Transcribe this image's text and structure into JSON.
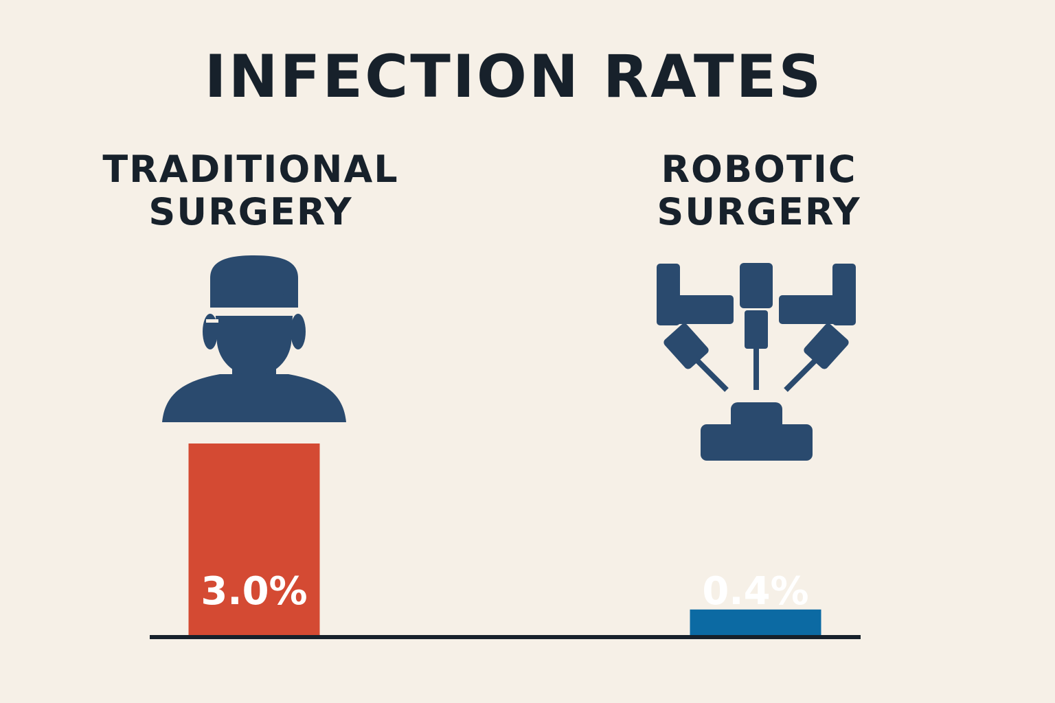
{
  "chart_data": {
    "type": "bar",
    "title": "INFECTION RATES",
    "categories": [
      {
        "line1": "TRADITIONAL",
        "line2": "SURGERY",
        "icon": "surgeon-icon"
      },
      {
        "line1": "ROBOTIC",
        "line2": "SURGERY",
        "icon": "surgical-robot-icon"
      }
    ],
    "values": [
      3.0,
      0.4
    ],
    "value_labels": [
      "3.0%",
      "0.4%"
    ],
    "unit": "%",
    "colors": [
      "#d44a33",
      "#0c6aa3"
    ],
    "icon_color": "#2a4a6e",
    "xlabel": "",
    "ylabel": "",
    "grid": false,
    "legend": "none"
  }
}
